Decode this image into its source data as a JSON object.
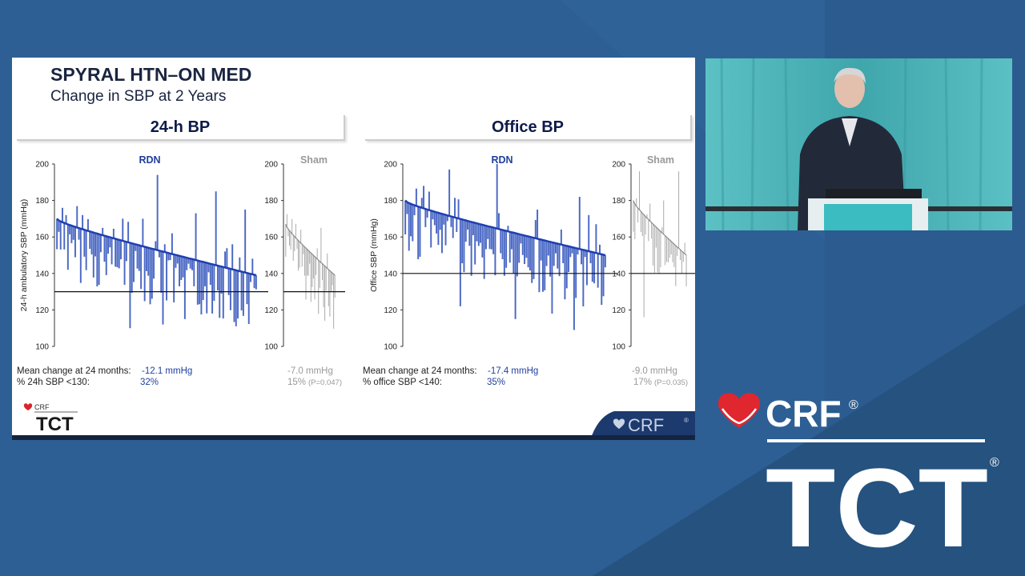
{
  "slide": {
    "title": "SPYRAL HTN–ON MED",
    "subtitle": "Change in SBP at 2 Years",
    "panel_left_title": "24-h BP",
    "panel_right_title": "Office BP"
  },
  "chart_data": [
    {
      "type": "bar",
      "panel": "24-h BP",
      "ylabel": "24-h ambulatory SBP (mmHg)",
      "ylim": [
        100,
        200
      ],
      "yticks": [
        100,
        120,
        140,
        160,
        180,
        200
      ],
      "groups": [
        {
          "name": "RDN",
          "color": "#1f3fb0",
          "baseline_start": 170,
          "baseline_end": 139,
          "n": 110,
          "threshold": 130,
          "spikes": [
            {
              "i": 5,
              "v": 172
            },
            {
              "i": 14,
              "v": 172
            },
            {
              "i": 25,
              "v": 165
            },
            {
              "i": 36,
              "v": 170
            },
            {
              "i": 47,
              "v": 170
            },
            {
              "i": 55,
              "v": 194
            },
            {
              "i": 63,
              "v": 162
            },
            {
              "i": 76,
              "v": 173
            },
            {
              "i": 87,
              "v": 185
            },
            {
              "i": 96,
              "v": 156
            },
            {
              "i": 103,
              "v": 175
            },
            {
              "i": 40,
              "v": 110
            },
            {
              "i": 58,
              "v": 112
            },
            {
              "i": 70,
              "v": 115
            },
            {
              "i": 85,
              "v": 118
            }
          ]
        },
        {
          "name": "Sham",
          "color": "#999999",
          "baseline_start": 167,
          "baseline_end": 139,
          "n": 40,
          "threshold": 130,
          "spikes": [
            {
              "i": 12,
              "v": 164
            },
            {
              "i": 28,
              "v": 165
            },
            {
              "i": 34,
              "v": 122
            }
          ]
        }
      ],
      "footer": {
        "row1_label": "Mean change at 24 months:",
        "rdn_value": "-12.1 mmHg",
        "sham_value": "-7.0 mmHg",
        "row2_label": "% 24h SBP <130:",
        "rdn_pct": "32%",
        "sham_pct": "15%",
        "sham_p": "(P=0.047)"
      }
    },
    {
      "type": "bar",
      "panel": "Office BP",
      "ylabel": "Office SBP (mmHg)",
      "ylim": [
        100,
        200
      ],
      "yticks": [
        100,
        120,
        140,
        160,
        180,
        200
      ],
      "groups": [
        {
          "name": "RDN",
          "color": "#1f3fb0",
          "baseline_start": 180,
          "baseline_end": 150,
          "n": 110,
          "threshold": 140,
          "spikes": [
            {
              "i": 10,
              "v": 188
            },
            {
              "i": 24,
              "v": 197
            },
            {
              "i": 50,
              "v": 200
            },
            {
              "i": 72,
              "v": 175
            },
            {
              "i": 95,
              "v": 182
            },
            {
              "i": 100,
              "v": 172
            },
            {
              "i": 104,
              "v": 167
            },
            {
              "i": 30,
              "v": 122
            },
            {
              "i": 60,
              "v": 115
            },
            {
              "i": 80,
              "v": 118
            },
            {
              "i": 92,
              "v": 109
            }
          ]
        },
        {
          "name": "Sham",
          "color": "#999999",
          "baseline_start": 180,
          "baseline_end": 150,
          "n": 36,
          "threshold": 140,
          "spikes": [
            {
              "i": 4,
              "v": 196
            },
            {
              "i": 7,
              "v": 116
            },
            {
              "i": 20,
              "v": 180
            },
            {
              "i": 30,
              "v": 196
            }
          ]
        }
      ],
      "footer": {
        "row1_label": "Mean change at 24 months:",
        "rdn_value": "-17.4 mmHg",
        "sham_value": "-9.0 mmHg",
        "row2_label": "% office SBP <140:",
        "rdn_pct": "35%",
        "sham_pct": "17%",
        "sham_p": "(P=0.035)"
      }
    }
  ],
  "logos": {
    "crf": "CRF",
    "tct": "TCT",
    "registered": "®",
    "crf_corner": "CRF"
  }
}
